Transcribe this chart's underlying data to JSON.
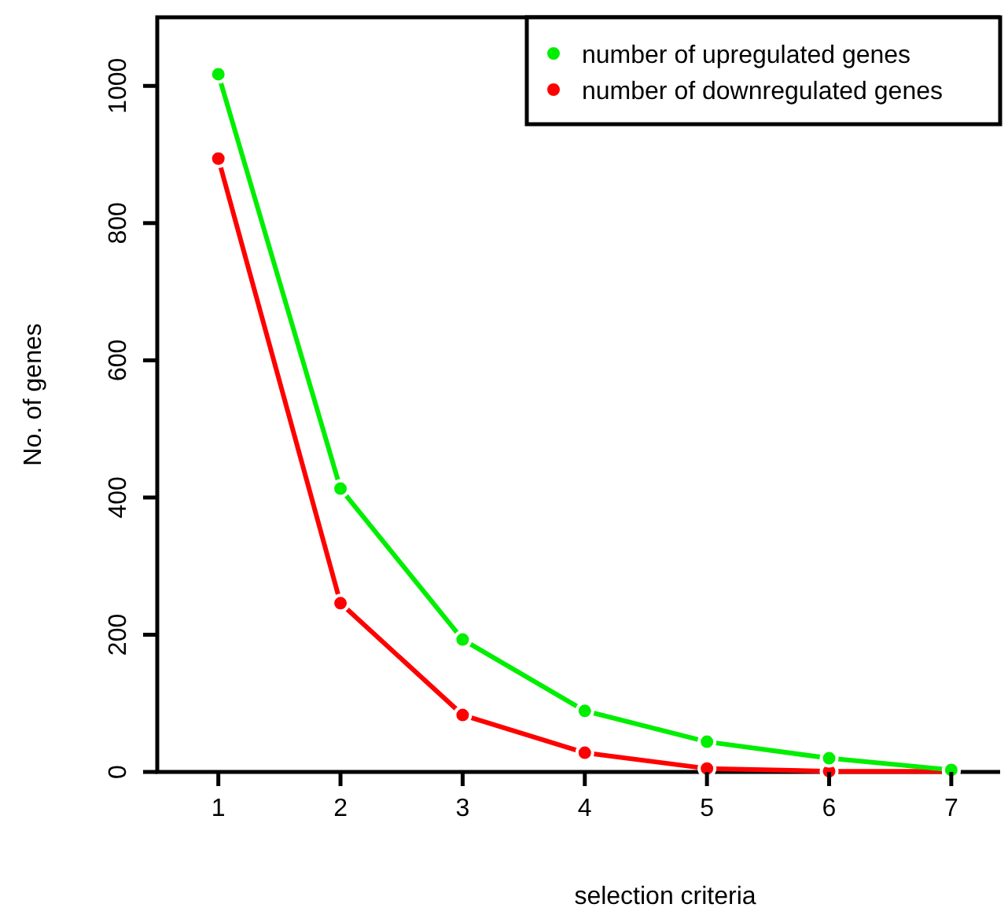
{
  "chart_data": {
    "type": "line",
    "xlabel": "selection criteria",
    "ylabel": "No. of genes",
    "x": [
      1,
      2,
      3,
      4,
      5,
      6,
      7
    ],
    "xlim": [
      0.5,
      7.4
    ],
    "xticks": [
      1,
      2,
      3,
      4,
      5,
      6,
      7
    ],
    "ylim": [
      0,
      1100
    ],
    "yticks": [
      0,
      200,
      400,
      600,
      800,
      1000
    ],
    "marker": "circle",
    "legend": "top right",
    "grid": false,
    "series": [
      {
        "name": "number of upregulated genes",
        "color": "#00ee00",
        "values": [
          1017,
          413,
          193,
          89,
          44,
          20,
          3
        ]
      },
      {
        "name": "number of downregulated genes",
        "color": "#ff0000",
        "values": [
          894,
          246,
          83,
          28,
          5,
          1,
          1
        ]
      }
    ]
  }
}
